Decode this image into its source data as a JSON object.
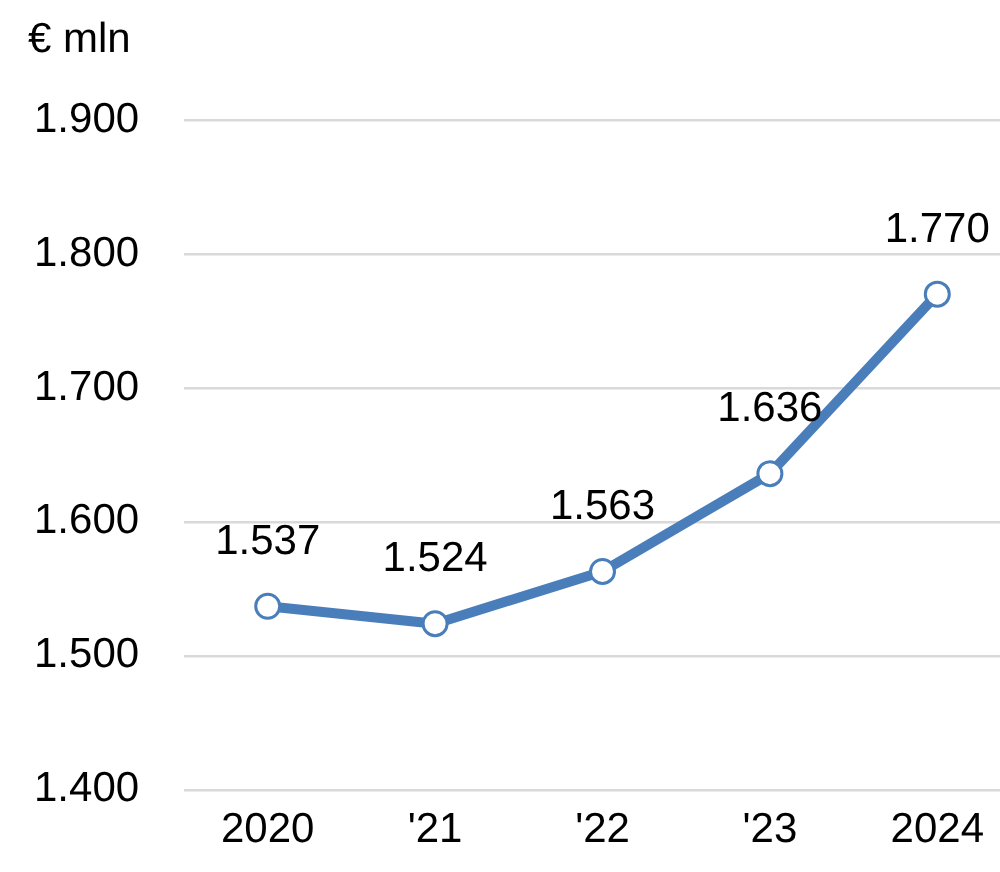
{
  "chart_data": {
    "type": "line",
    "ylabel": "€ mln",
    "categories": [
      "2020",
      "'21",
      "'22",
      "'23",
      "2024"
    ],
    "values": [
      1537,
      1524,
      1563,
      1636,
      1770
    ],
    "color": "#4a7ebb",
    "value_labels": [
      "1.537",
      "1.524",
      "1.563",
      "1.636",
      "1.770"
    ],
    "ylim": [
      1400,
      1900
    ],
    "yticks": [
      {
        "value": 1400,
        "label": "1.400"
      },
      {
        "value": 1500,
        "label": "1.500"
      },
      {
        "value": 1600,
        "label": "1.600"
      },
      {
        "value": 1700,
        "label": "1.700"
      },
      {
        "value": 1800,
        "label": "1.800"
      },
      {
        "value": 1900,
        "label": "1.900"
      }
    ],
    "grid": "y",
    "marker": "circle",
    "line_style": "solid"
  }
}
